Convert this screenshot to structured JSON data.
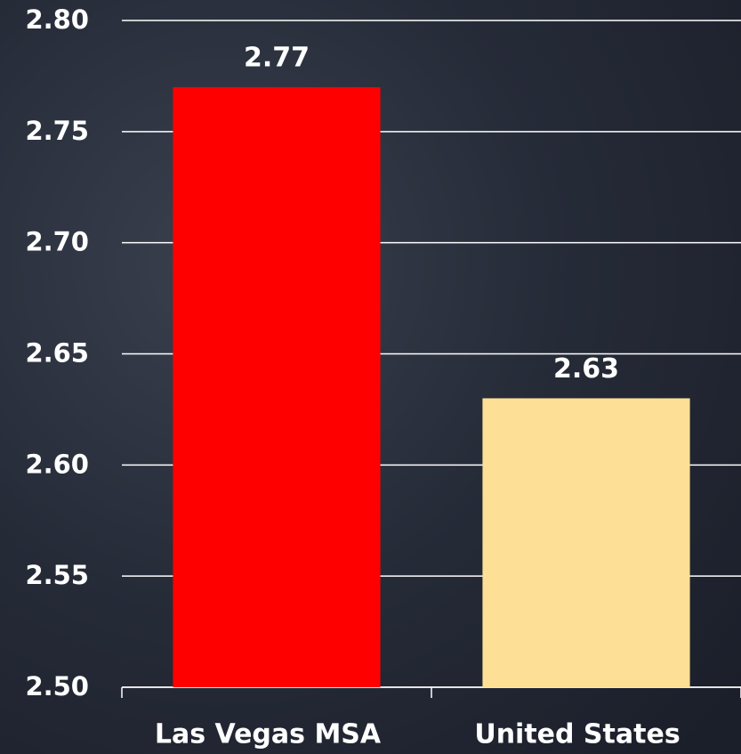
{
  "chart_data": {
    "type": "bar",
    "categories": [
      "Las Vegas MSA",
      "United States"
    ],
    "values": [
      2.77,
      2.63
    ],
    "colors": [
      "#ff0000",
      "#fde095"
    ],
    "ylim": [
      2.5,
      2.8
    ],
    "yticks": [
      {
        "value": 2.5,
        "label": "2.50"
      },
      2.55,
      {
        "value": 2.6,
        "label": "2.60"
      },
      2.65,
      {
        "value": 2.7,
        "label": "2.70"
      },
      2.75,
      {
        "value": 2.8,
        "label": "2.80"
      }
    ],
    "grid": true
  }
}
